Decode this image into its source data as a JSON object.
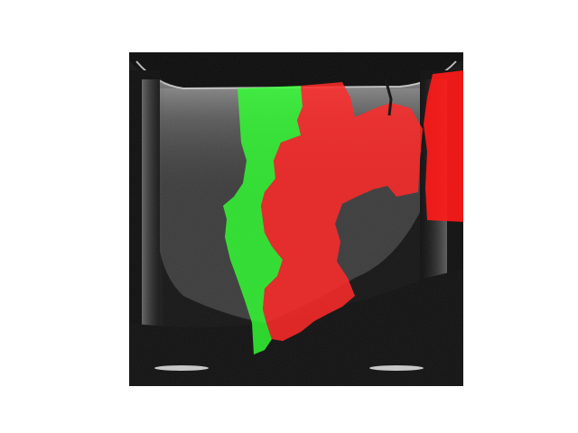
{
  "image": {
    "kind": "grayscale scan with segmentation overlay",
    "background_color": "#ffffff",
    "base_tone": "#1a1a1a"
  },
  "overlays": [
    {
      "name": "green-region",
      "color": "#33ff33"
    },
    {
      "name": "red-region",
      "color": "#ff2a2a"
    }
  ]
}
